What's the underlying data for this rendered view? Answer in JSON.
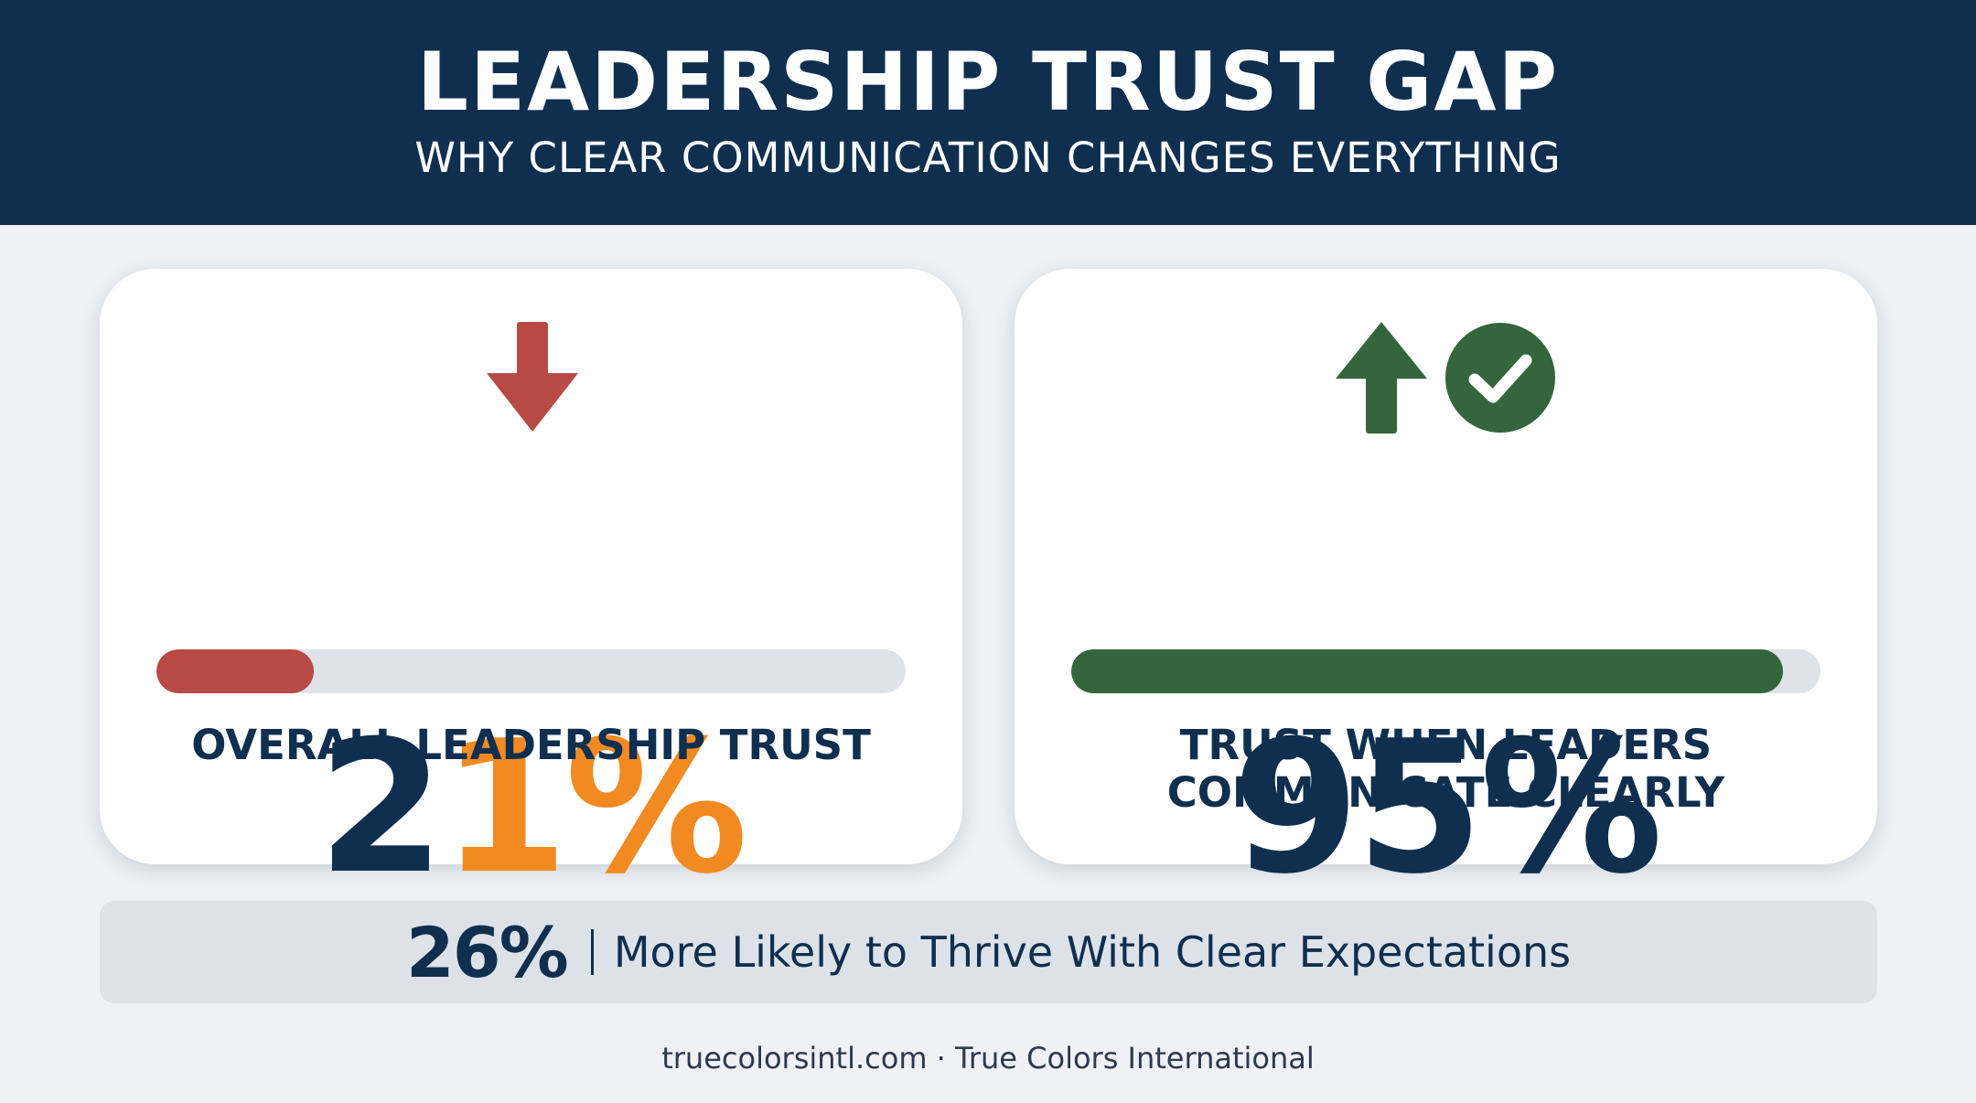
{
  "header": {
    "title": "LEADERSHIP TRUST GAP",
    "subtitle": "WHY CLEAR COMMUNICATION CHANGES EVERYTHING"
  },
  "cards": [
    {
      "value_main": "2",
      "value_accent": "1%",
      "value": 21,
      "label": "OVERALL LEADERSHIP TRUST",
      "icon": "arrow-down-icon",
      "bar_color": "#b84a45"
    },
    {
      "value_text": "95%",
      "value": 95,
      "label_line1": "TRUST WHEN LEADERS",
      "label_line2": "COMMUNICATE CLEARLY",
      "icons": [
        "arrow-up-icon",
        "check-circle-icon"
      ],
      "bar_color": "#35653d"
    }
  ],
  "highlight": {
    "value": "26%",
    "text": "More Likely to Thrive With Clear Expectations"
  },
  "footer": {
    "text": "truecolorsintl.com · True Colors International"
  },
  "colors": {
    "navy": "#102f4f",
    "orange": "#f28a22",
    "red": "#b84a45",
    "green": "#35653d"
  }
}
